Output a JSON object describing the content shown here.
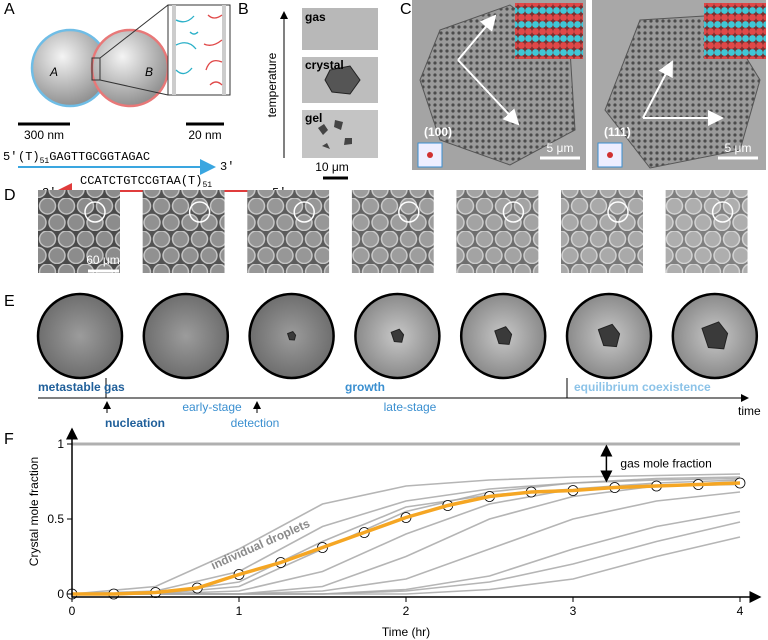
{
  "panels": {
    "A": {
      "label": "A",
      "sphere_a": "A",
      "sphere_b": "B",
      "scale_left": "300 nm",
      "scale_right": "20 nm",
      "strand_top": {
        "end5": "5'",
        "prefix": "(T)",
        "sub": "51",
        "seq": "GAGTTGCGGTAGAC",
        "end3": "3'"
      },
      "strand_bottom": {
        "end3": "3'",
        "seq": "CCATCTGTCCGTAA",
        "prefix": "(T)",
        "sub": "51",
        "end5": "5'"
      }
    },
    "B": {
      "label": "B",
      "axis": "temperature",
      "images": [
        "gas",
        "crystal",
        "gel"
      ],
      "scale": "10 μm"
    },
    "C": {
      "label": "C",
      "images": [
        {
          "plane": "(100)",
          "scale": "5 μm"
        },
        {
          "plane": "(111)",
          "scale": "5 μm"
        }
      ]
    },
    "D": {
      "label": "D",
      "scale": "60 μm"
    },
    "E": {
      "label": "E"
    },
    "timeline": {
      "metastable": "metastable gas",
      "nucleation": "nucleation",
      "early": "early-stage",
      "detection": "detection",
      "growth": "growth",
      "late": "late-stage",
      "equilibrium": "equilibrium coexistence",
      "axis": "time"
    },
    "F": {
      "label": "F"
    }
  },
  "chart_data": {
    "type": "line",
    "xlabel": "Time (hr)",
    "ylabel": "Crystal mole fraction",
    "xlim": [
      0,
      4
    ],
    "xticks": [
      0,
      1,
      2,
      3,
      4
    ],
    "ylim": [
      0,
      1.1
    ],
    "yticks": [
      0,
      0.5,
      1
    ],
    "reference_line": 1,
    "reference_color": "#b0b0b0",
    "x": [
      0,
      0.5,
      1,
      1.5,
      2,
      2.5,
      3,
      3.5,
      4
    ],
    "series": [
      {
        "color": "#a8a8a8",
        "values": [
          0,
          0,
          0.05,
          0.3,
          0.55,
          0.68,
          0.74,
          0.77,
          0.78
        ]
      },
      {
        "color": "#a8a8a8",
        "values": [
          0,
          0.02,
          0.15,
          0.45,
          0.62,
          0.7,
          0.74,
          0.76,
          0.77
        ]
      },
      {
        "color": "#a8a8a8",
        "values": [
          0,
          0,
          0.02,
          0.15,
          0.4,
          0.6,
          0.7,
          0.74,
          0.76
        ]
      },
      {
        "color": "#a8a8a8",
        "values": [
          0,
          0,
          0,
          0.05,
          0.25,
          0.5,
          0.65,
          0.72,
          0.75
        ]
      },
      {
        "color": "#a8a8a8",
        "values": [
          0,
          0,
          0,
          0.02,
          0.1,
          0.3,
          0.5,
          0.62,
          0.68
        ]
      },
      {
        "color": "#a8a8a8",
        "values": [
          0,
          0,
          0,
          0,
          0.03,
          0.12,
          0.3,
          0.45,
          0.55
        ]
      },
      {
        "color": "#a8a8a8",
        "values": [
          0,
          0,
          0,
          0,
          0,
          0.03,
          0.1,
          0.25,
          0.38
        ]
      },
      {
        "color": "#a8a8a8",
        "values": [
          0,
          0.05,
          0.3,
          0.6,
          0.72,
          0.76,
          0.78,
          0.79,
          0.8
        ]
      },
      {
        "color": "#a8a8a8",
        "values": [
          0,
          0,
          0.08,
          0.35,
          0.58,
          0.66,
          0.7,
          0.72,
          0.73
        ]
      },
      {
        "color": "#a8a8a8",
        "values": [
          0,
          0,
          0,
          0,
          0.02,
          0.08,
          0.2,
          0.35,
          0.48
        ]
      }
    ],
    "mean": {
      "color": "#f5a623",
      "x": [
        0,
        0.25,
        0.5,
        0.75,
        1,
        1.25,
        1.5,
        1.75,
        2,
        2.25,
        2.5,
        2.75,
        3,
        3.25,
        3.5,
        3.75,
        4
      ],
      "values": [
        0,
        0,
        0.01,
        0.04,
        0.13,
        0.21,
        0.31,
        0.41,
        0.51,
        0.59,
        0.65,
        0.68,
        0.69,
        0.71,
        0.72,
        0.73,
        0.74
      ]
    },
    "annotations": [
      {
        "text": "individual droplets"
      },
      {
        "text": "gas mole fraction",
        "x": 3.2,
        "y_from": 0.74,
        "y_to": 1
      }
    ]
  }
}
